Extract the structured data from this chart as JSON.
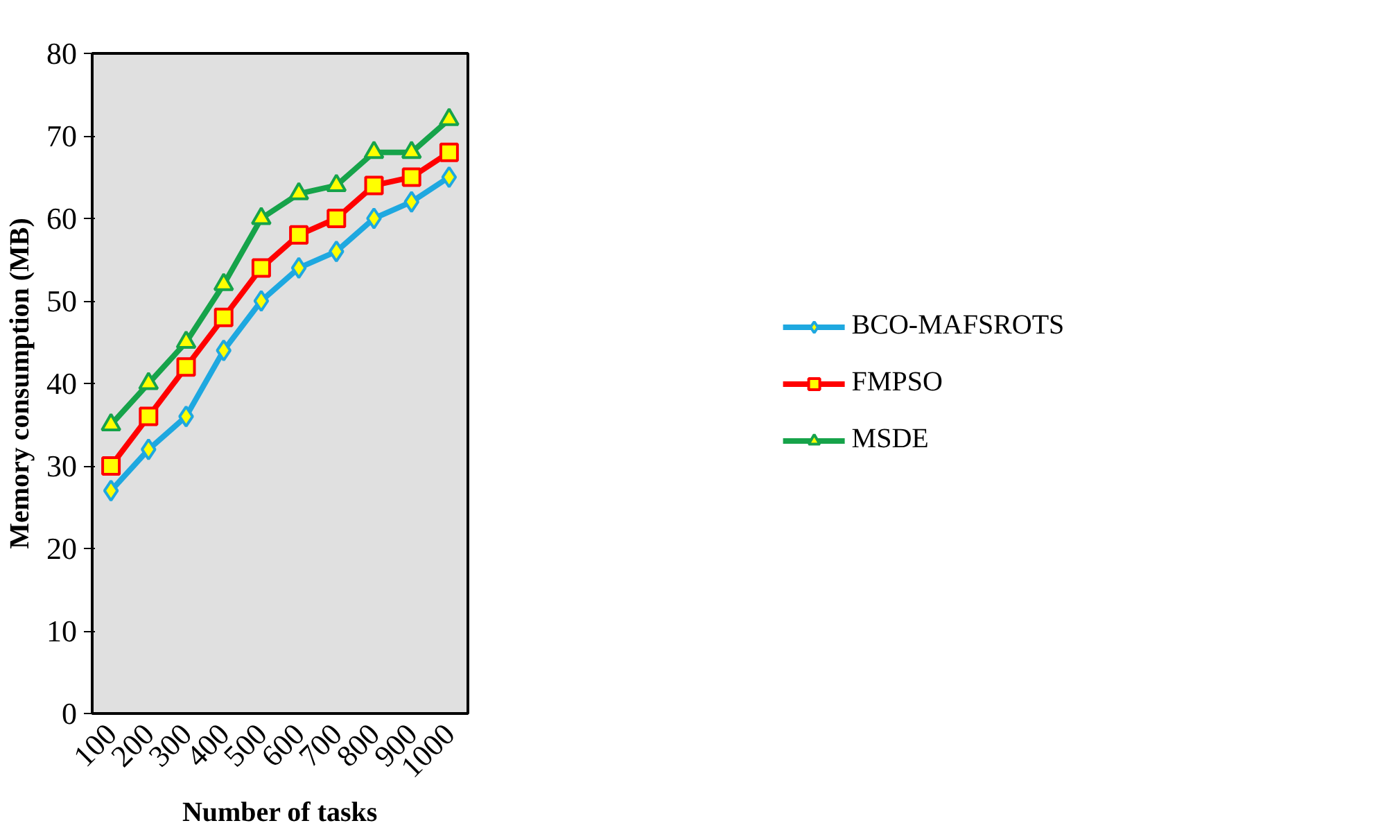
{
  "chart_data": {
    "type": "line",
    "xlabel": "Number of tasks",
    "ylabel": "Memory consumption (MB)",
    "categories": [
      "100",
      "200",
      "300",
      "400",
      "500",
      "600",
      "700",
      "800",
      "900",
      "1000"
    ],
    "series": [
      {
        "name": "BCO-MAFSROTS",
        "color": "#1ea8e0",
        "marker": "diamond",
        "values": [
          27,
          32,
          36,
          44,
          50,
          54,
          56,
          60,
          62,
          65
        ]
      },
      {
        "name": "FMPSO",
        "color": "#ff0000",
        "marker": "square",
        "values": [
          30,
          36,
          42,
          48,
          54,
          58,
          60,
          64,
          65,
          68
        ]
      },
      {
        "name": "MSDE",
        "color": "#16a34a",
        "marker": "triangle",
        "values": [
          35,
          40,
          45,
          52,
          60,
          63,
          64,
          68,
          68,
          72
        ]
      }
    ],
    "ylim": [
      0,
      80
    ],
    "yticks": [
      0,
      10,
      20,
      30,
      40,
      50,
      60,
      70,
      80
    ],
    "grid": false,
    "legend": "right",
    "line_style": "solid"
  }
}
